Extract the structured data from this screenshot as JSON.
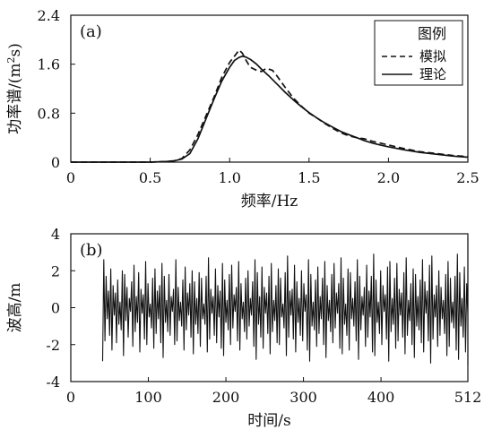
{
  "chart_data": [
    {
      "panel": "(a)",
      "type": "line",
      "xlabel": "频率/Hz",
      "ylabel": "功率谱/(m²s)",
      "ylabel_parts": {
        "main": "功率谱/(m",
        "sup": "2",
        "tail": "s)"
      },
      "xlim": [
        0,
        2.5
      ],
      "ylim": [
        0,
        2.4
      ],
      "xticks": [
        "0",
        "0.5",
        "1.0",
        "1.5",
        "2.0",
        "2.5"
      ],
      "xtick_values": [
        0,
        0.5,
        1.0,
        1.5,
        2.0,
        2.5
      ],
      "yticks": [
        "0",
        "0.8",
        "1.6",
        "2.4"
      ],
      "ytick_values": [
        0,
        0.8,
        1.6,
        2.4
      ],
      "legend": {
        "title": "图例",
        "position": "top-right"
      },
      "grid": false,
      "series": [
        {
          "name": "模拟",
          "style": "dashed",
          "x": [
            0,
            0.5,
            0.6,
            0.65,
            0.7,
            0.75,
            0.8,
            0.85,
            0.9,
            0.95,
            1.0,
            1.03,
            1.06,
            1.08,
            1.1,
            1.13,
            1.17,
            1.2,
            1.23,
            1.27,
            1.3,
            1.35,
            1.4,
            1.45,
            1.5,
            1.55,
            1.6,
            1.65,
            1.7,
            1.75,
            1.8,
            1.85,
            1.9,
            1.95,
            2.0,
            2.1,
            2.2,
            2.3,
            2.4,
            2.5
          ],
          "y": [
            0,
            0,
            0.01,
            0.02,
            0.06,
            0.2,
            0.45,
            0.75,
            1.05,
            1.38,
            1.63,
            1.73,
            1.83,
            1.78,
            1.68,
            1.55,
            1.5,
            1.48,
            1.53,
            1.5,
            1.4,
            1.22,
            1.05,
            0.92,
            0.8,
            0.72,
            0.63,
            0.55,
            0.48,
            0.43,
            0.4,
            0.38,
            0.34,
            0.31,
            0.28,
            0.22,
            0.17,
            0.14,
            0.11,
            0.09
          ]
        },
        {
          "name": "理论",
          "style": "solid",
          "x": [
            0,
            0.5,
            0.6,
            0.65,
            0.7,
            0.75,
            0.8,
            0.85,
            0.9,
            0.95,
            1.0,
            1.03,
            1.06,
            1.08,
            1.1,
            1.13,
            1.17,
            1.2,
            1.25,
            1.3,
            1.35,
            1.4,
            1.45,
            1.5,
            1.55,
            1.6,
            1.65,
            1.7,
            1.75,
            1.8,
            1.85,
            1.9,
            1.95,
            2.0,
            2.1,
            2.2,
            2.3,
            2.4,
            2.5
          ],
          "y": [
            0,
            0,
            0.01,
            0.02,
            0.05,
            0.14,
            0.38,
            0.7,
            1.02,
            1.32,
            1.55,
            1.66,
            1.71,
            1.73,
            1.72,
            1.68,
            1.6,
            1.52,
            1.4,
            1.27,
            1.14,
            1.02,
            0.91,
            0.81,
            0.72,
            0.64,
            0.57,
            0.5,
            0.45,
            0.4,
            0.35,
            0.31,
            0.28,
            0.25,
            0.2,
            0.16,
            0.13,
            0.1,
            0.08
          ]
        }
      ]
    },
    {
      "panel": "(b)",
      "type": "line",
      "xlabel": "时间/s",
      "ylabel": "波高/m",
      "xlim": [
        0,
        512
      ],
      "ylim": [
        -4,
        4
      ],
      "xticks": [
        "0",
        "100",
        "200",
        "300",
        "400",
        "512"
      ],
      "xtick_values": [
        0,
        100,
        200,
        300,
        400,
        512
      ],
      "yticks": [
        "4",
        "2",
        "0",
        "-2",
        "-4"
      ],
      "ytick_values": [
        4,
        2,
        0,
        -2,
        -4
      ],
      "grid": false,
      "series": [
        {
          "style": "solid",
          "x_start": 41,
          "x_end": 512,
          "dx": 1.5,
          "y": [
            -2.9,
            2.6,
            -1.8,
            1.7,
            -0.6,
            0.9,
            -1.5,
            2.1,
            -2.3,
            1.2,
            -0.4,
            0.8,
            -1.9,
            1.5,
            -0.9,
            0.3,
            -1.2,
            2.0,
            -2.6,
            1.8,
            -0.7,
            1.1,
            -1.6,
            0.5,
            -0.2,
            1.4,
            -2.1,
            2.3,
            -1.3,
            0.6,
            -0.8,
            1.9,
            -2.4,
            1.0,
            -0.3,
            0.7,
            -1.7,
            2.5,
            -2.0,
            1.3,
            -0.5,
            0.2,
            -1.1,
            1.6,
            -2.2,
            2.1,
            -1.4,
            0.9,
            -0.6,
            1.2,
            -1.9,
            2.4,
            -2.7,
            1.7,
            -0.8,
            0.4,
            -1.3,
            1.8,
            -1.5,
            0.6,
            -0.2,
            1.0,
            -2.0,
            2.6,
            -1.8,
            1.1,
            -0.7,
            0.3,
            -1.0,
            1.5,
            -2.3,
            2.2,
            -1.2,
            0.8,
            -0.4,
            1.3,
            -1.6,
            2.0,
            -2.5,
            1.4,
            -0.9,
            0.5,
            -1.4,
            1.9,
            -2.1,
            1.6,
            -0.6,
            0.2,
            -0.9,
            1.7,
            -2.4,
            2.7,
            -1.7,
            1.0,
            -0.3,
            0.6,
            -1.5,
            2.1,
            -1.9,
            1.2,
            -0.5,
            0.9,
            -2.2,
            2.4,
            -2.6,
            1.5,
            -0.8,
            0.4,
            -1.2,
            1.8,
            -2.0,
            2.3,
            -1.1,
            0.7,
            -0.2,
            1.1,
            -1.8,
            2.5,
            -2.3,
            1.3,
            -0.6,
            0.3,
            -1.3,
            1.6,
            -1.7,
            2.0,
            -1.0,
            0.5,
            -0.4,
            1.4,
            -2.1,
            2.6,
            -2.8,
            1.9,
            -0.9,
            0.6,
            -1.6,
            2.2,
            -2.2,
            1.1,
            -0.3,
            0.8,
            -1.4,
            1.7,
            -2.5,
            2.4,
            -1.3,
            0.4,
            -0.7,
            1.2,
            -1.9,
            2.1,
            -2.0,
            1.6,
            -0.5,
            0.2,
            -1.1,
            1.9,
            -2.6,
            2.8,
            -1.6,
            0.9,
            -0.4,
            1.0,
            -1.7,
            2.3,
            -2.4,
            1.4,
            -0.8,
            0.5,
            -1.5,
            2.0,
            -1.8,
            1.3,
            -0.2,
            0.7,
            -2.3,
            2.6,
            -2.9,
            1.8,
            -1.0,
            0.3,
            -1.2,
            1.5,
            -2.1,
            2.2,
            -1.4,
            0.6,
            -0.6,
            1.6,
            -2.0,
            2.5,
            -2.7,
            1.2,
            -0.7,
            0.4,
            -1.3,
            1.8,
            -1.9,
            2.4,
            -1.1,
            0.8,
            -0.3,
            1.3,
            -2.2,
            2.7,
            -2.5,
            1.6,
            -0.9,
            0.2,
            -1.5,
            2.1,
            -2.3,
            1.9,
            -0.6,
            0.5,
            -1.0,
            1.4,
            -1.8,
            2.6,
            -2.8,
            1.7,
            -1.2,
            0.6,
            -0.4,
            1.1,
            -2.1,
            2.3,
            -1.6,
            0.9,
            -0.5,
            1.7,
            -2.4,
            2.9,
            -2.6,
            1.5,
            -0.8,
            0.3,
            -1.4,
            2.0,
            -2.0,
            1.2,
            -0.2,
            0.7,
            -1.7,
            2.2,
            -2.9,
            2.5,
            -1.3,
            0.5,
            -0.9,
            1.6,
            -2.2,
            2.4,
            -1.8,
            1.0,
            -0.4,
            0.8,
            -1.6,
            1.9,
            -2.5,
            2.7,
            -1.5,
            0.4,
            -0.7,
            1.3,
            -2.0,
            2.1,
            -2.7,
            1.8,
            -1.0,
            0.6,
            -1.2,
            1.5,
            -1.9,
            2.6,
            -2.4,
            1.4,
            -0.3,
            0.9,
            -1.8,
            2.3,
            -3.0,
            2.8,
            -1.7,
            0.7,
            -0.5,
            1.2,
            -2.1,
            2.0,
            -1.5,
            1.1,
            -0.6,
            0.4,
            -1.4,
            1.8,
            -2.6,
            2.5,
            -2.1,
            1.6,
            -0.8,
            0.3,
            -1.1,
            1.7,
            -2.3,
            2.9,
            -2.8,
            1.9,
            -1.0,
            0.5,
            -1.6,
            2.2,
            -2.4,
            1.3,
            -0.4,
            0.8,
            -1.9,
            2.6,
            -3.1,
            3.8,
            -2.9,
            2.0,
            -1.3,
            0.6,
            -1.7,
            2.4,
            -3.1,
            2.2,
            -1.1,
            0.7,
            -0.9,
            1.5,
            -2.2,
            2.7,
            -2.5,
            1.6,
            -0.6,
            0.3,
            -1.4,
            1.9,
            -2.0,
            2.3,
            -1.5,
            0.9,
            -0.5,
            1.2,
            -2.6,
            2.5,
            -2.0,
            1.4,
            -0.7,
            0.4,
            -1.3,
            1.8,
            -2.3,
            2.1,
            -1.2,
            0.6,
            -0.3,
            1.0,
            -1.8,
            2.4,
            -2.7,
            1.7,
            -0.9,
            0.5,
            -1.5,
            2.0,
            -1.6,
            1.3,
            -0.4,
            0.8,
            -1.1,
            1.6,
            -2.1,
            2.2,
            -1.4,
            0.7,
            -0.6,
            1.1,
            -1.9,
            2.5,
            -2.4,
            1.5,
            -0.8,
            0.2,
            -1.2,
            1.7,
            -2.2,
            1.9,
            -1.0,
            0.6,
            -0.5,
            1.4,
            -1.7,
            2.3,
            -2.5,
            1.8,
            -1.1,
            0.4,
            -1.3,
            1.6,
            -1.4,
            2.0,
            -0.9,
            0.3,
            -0.7,
            1.2,
            -2.0,
            2.1,
            -1.6,
            1.0,
            -0.6,
            0.5,
            -1.2,
            1.5
          ]
        }
      ]
    }
  ]
}
